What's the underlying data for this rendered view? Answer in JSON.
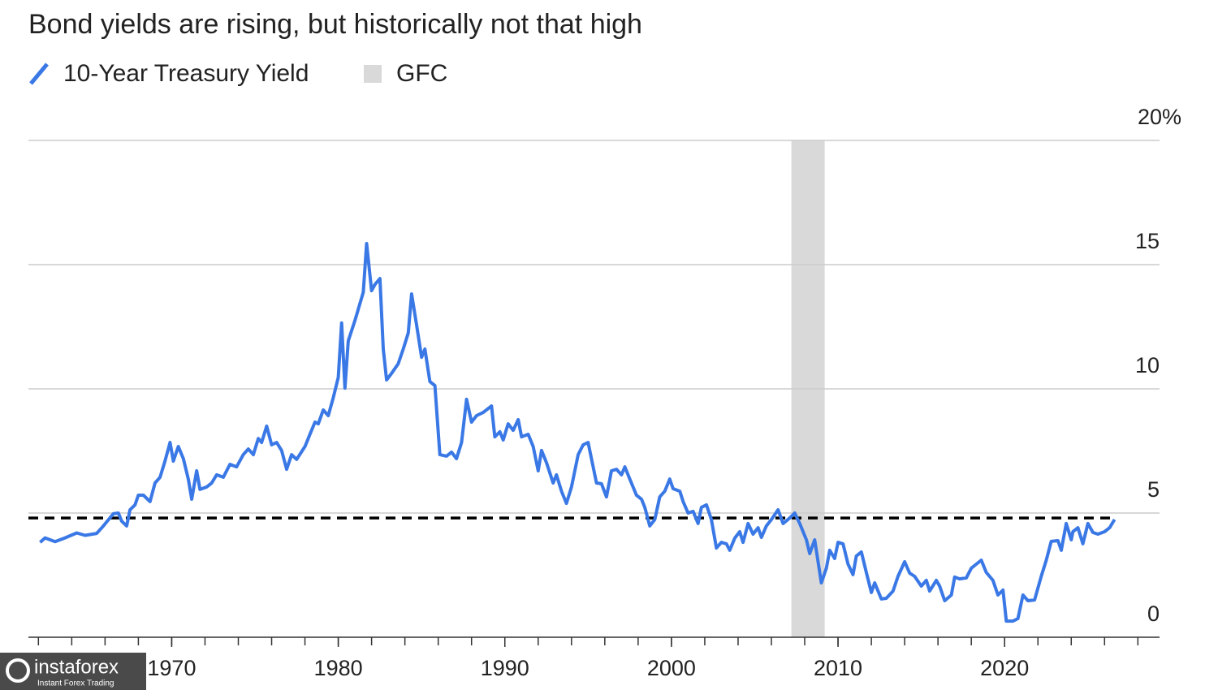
{
  "chart_data": {
    "type": "line",
    "title": "Bond yields are rising, but historically not that high",
    "x": [
      1962.1,
      1962.4,
      1963.0,
      1963.6,
      1964.3,
      1964.8,
      1965.5,
      1965.9,
      1966.5,
      1966.8,
      1967.0,
      1967.3,
      1967.5,
      1967.8,
      1968.0,
      1968.3,
      1968.7,
      1969.0,
      1969.3,
      1969.6,
      1969.9,
      1970.1,
      1970.4,
      1970.7,
      1971.0,
      1971.2,
      1971.5,
      1971.7,
      1972.1,
      1972.4,
      1972.7,
      1973.1,
      1973.5,
      1973.9,
      1974.3,
      1974.6,
      1974.9,
      1975.2,
      1975.4,
      1975.7,
      1976.0,
      1976.3,
      1976.6,
      1976.9,
      1977.2,
      1977.5,
      1978.0,
      1978.3,
      1978.6,
      1978.8,
      1979.1,
      1979.4,
      1979.7,
      1980.0,
      1980.2,
      1980.4,
      1980.6,
      1981.0,
      1981.5,
      1981.7,
      1982.0,
      1982.2,
      1982.5,
      1982.7,
      1982.9,
      1983.2,
      1983.6,
      1983.9,
      1984.2,
      1984.4,
      1984.7,
      1985.0,
      1985.2,
      1985.5,
      1985.8,
      1986.1,
      1986.5,
      1986.8,
      1987.1,
      1987.4,
      1987.7,
      1988.0,
      1988.3,
      1988.7,
      1989.2,
      1989.4,
      1989.7,
      1989.9,
      1990.2,
      1990.5,
      1990.8,
      1991.0,
      1991.4,
      1991.7,
      1992.0,
      1992.2,
      1992.5,
      1992.9,
      1993.1,
      1993.4,
      1993.7,
      1994.0,
      1994.4,
      1994.7,
      1995.0,
      1995.2,
      1995.5,
      1995.8,
      1996.1,
      1996.4,
      1996.7,
      1997.0,
      1997.2,
      1997.5,
      1997.9,
      1998.2,
      1998.4,
      1998.7,
      1999.0,
      1999.3,
      1999.6,
      1999.9,
      2000.1,
      2000.5,
      2000.7,
      2001.0,
      2001.3,
      2001.6,
      2001.8,
      2002.1,
      2002.4,
      2002.7,
      2003.0,
      2003.3,
      2003.5,
      2003.8,
      2004.1,
      2004.3,
      2004.6,
      2004.9,
      2005.2,
      2005.4,
      2005.7,
      2006.0,
      2006.4,
      2006.7,
      2007.1,
      2007.4,
      2007.7,
      2008.1,
      2008.3,
      2008.6,
      2009.0,
      2009.3,
      2009.5,
      2009.8,
      2010.0,
      2010.3,
      2010.6,
      2010.9,
      2011.1,
      2011.4,
      2011.7,
      2012.0,
      2012.2,
      2012.6,
      2012.9,
      2013.3,
      2013.6,
      2014.0,
      2014.3,
      2014.6,
      2015.0,
      2015.3,
      2015.5,
      2015.9,
      2016.1,
      2016.4,
      2016.8,
      2017.0,
      2017.3,
      2017.7,
      2018.0,
      2018.3,
      2018.6,
      2018.9,
      2019.3,
      2019.6,
      2019.9,
      2020.1,
      2020.5,
      2020.8,
      2021.1,
      2021.4,
      2021.8,
      2022.2,
      2022.5,
      2022.8,
      2023.2,
      2023.4,
      2023.7,
      2024.0,
      2024.1,
      2024.4,
      2024.7,
      2025.0,
      2025.3,
      2025.6,
      2026.0,
      2026.3,
      2026.6
    ],
    "series": [
      {
        "name": "10-Year Treasury Yield",
        "color": "#3a78e6",
        "values": [
          3.82,
          4.0,
          3.85,
          4.0,
          4.2,
          4.1,
          4.18,
          4.48,
          4.97,
          5.0,
          4.67,
          4.48,
          5.13,
          5.33,
          5.72,
          5.72,
          5.46,
          6.21,
          6.44,
          7.09,
          7.84,
          7.09,
          7.68,
          7.19,
          6.37,
          5.56,
          6.7,
          5.95,
          6.05,
          6.21,
          6.54,
          6.44,
          6.96,
          6.86,
          7.35,
          7.58,
          7.35,
          8.0,
          7.84,
          8.5,
          7.75,
          7.84,
          7.52,
          6.76,
          7.35,
          7.16,
          7.68,
          8.17,
          8.66,
          8.59,
          9.15,
          8.92,
          9.64,
          10.46,
          12.65,
          10.03,
          11.93,
          12.75,
          13.89,
          15.85,
          13.95,
          14.2,
          14.44,
          11.6,
          10.36,
          10.62,
          11.01,
          11.6,
          12.25,
          13.82,
          12.58,
          11.27,
          11.6,
          10.29,
          10.13,
          7.35,
          7.29,
          7.45,
          7.19,
          7.84,
          9.58,
          8.66,
          8.92,
          9.05,
          9.31,
          8.07,
          8.27,
          7.94,
          8.59,
          8.33,
          8.76,
          8.07,
          8.17,
          7.68,
          6.7,
          7.52,
          7.03,
          6.21,
          6.54,
          5.88,
          5.39,
          6.05,
          7.35,
          7.75,
          7.84,
          7.19,
          6.21,
          6.18,
          5.65,
          6.7,
          6.76,
          6.54,
          6.86,
          6.37,
          5.72,
          5.56,
          5.23,
          4.48,
          4.74,
          5.65,
          5.88,
          6.37,
          5.98,
          5.88,
          5.46,
          5.0,
          5.07,
          4.58,
          5.23,
          5.33,
          4.74,
          3.59,
          3.82,
          3.76,
          3.5,
          3.99,
          4.25,
          3.82,
          4.58,
          4.15,
          4.41,
          4.02,
          4.48,
          4.74,
          5.13,
          4.58,
          4.8,
          5.0,
          4.58,
          3.92,
          3.37,
          3.92,
          2.19,
          2.78,
          3.5,
          3.17,
          3.82,
          3.76,
          2.94,
          2.52,
          3.27,
          3.43,
          2.61,
          1.8,
          2.19,
          1.54,
          1.57,
          1.86,
          2.45,
          3.04,
          2.58,
          2.45,
          2.06,
          2.29,
          1.86,
          2.29,
          2.06,
          1.47,
          1.7,
          2.42,
          2.35,
          2.39,
          2.78,
          2.94,
          3.1,
          2.61,
          2.29,
          1.7,
          1.9,
          0.65,
          0.65,
          0.75,
          1.7,
          1.47,
          1.5,
          2.45,
          3.1,
          3.86,
          3.89,
          3.5,
          4.58,
          3.92,
          4.25,
          4.41,
          3.76,
          4.58,
          4.22,
          4.15,
          4.25,
          4.41,
          4.74
        ]
      }
    ],
    "shade": {
      "name": "GFC",
      "start": 2007.2,
      "end": 2009.2,
      "color": "#d9d9d9"
    },
    "reference_line": {
      "value": 4.8,
      "color": "#000000"
    },
    "xlim": [
      1961.4,
      2029.3
    ],
    "xticks": [
      1970,
      1980,
      1990,
      2000,
      2010,
      2020
    ],
    "xminorticks": [
      1962,
      1964,
      1966,
      1968,
      1970,
      1972,
      1974,
      1976,
      1978,
      1980,
      1982,
      1984,
      1986,
      1988,
      1990,
      1992,
      1994,
      1996,
      1998,
      2000,
      2002,
      2004,
      2006,
      2008,
      2010,
      2012,
      2014,
      2016,
      2018,
      2020,
      2022,
      2024,
      2026,
      2028
    ],
    "ylim": [
      0,
      20
    ],
    "yticks": [
      0,
      5,
      10,
      15,
      {
        "value": 20,
        "label": "20%"
      }
    ],
    "grid": true
  },
  "watermark": {
    "brand": "instaforex",
    "tagline": "Instant Forex Trading"
  }
}
